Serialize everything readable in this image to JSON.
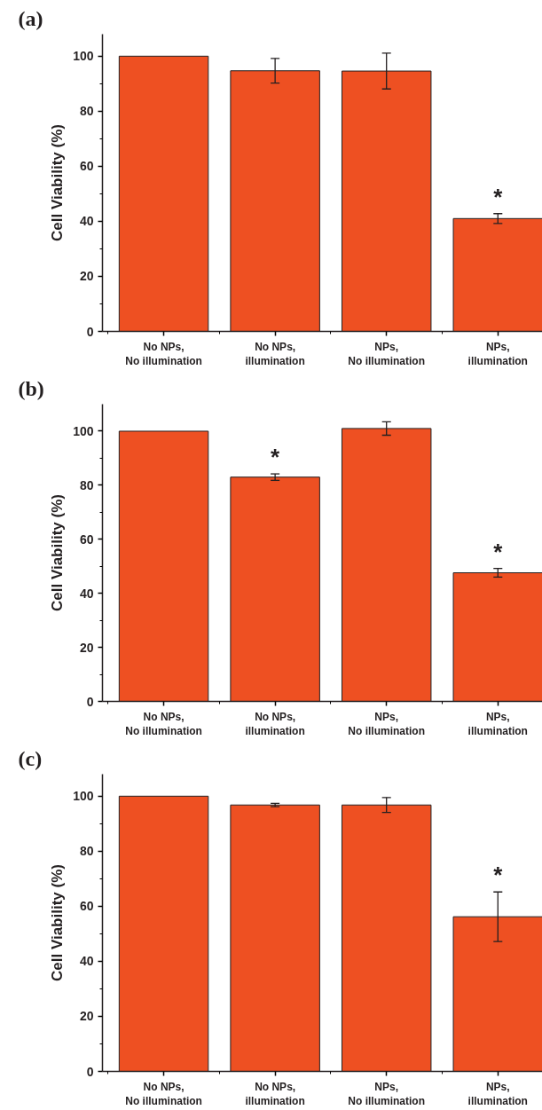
{
  "chart_data": [
    {
      "type": "bar",
      "title": "(a)",
      "ylabel": "Cell Viability (%)",
      "categories": [
        "No NPs,\nNo illumination",
        "No NPs,\nillumination",
        "NPs,\nNo illumination",
        "NPs,\nillumination"
      ],
      "values": [
        100,
        94.7,
        94.6,
        41.0
      ],
      "errors": [
        null,
        4.5,
        6.5,
        1.8
      ],
      "color": "#ee5022",
      "ylim": [
        0,
        108
      ],
      "yticks": [
        0,
        20,
        40,
        60,
        80,
        100
      ],
      "grid": false,
      "annotations": [
        {
          "text": "*",
          "x": "NPs,\nillumination",
          "y": 41.0
        }
      ]
    },
    {
      "type": "bar",
      "title": "(b)",
      "ylabel": "Cell Viability (%)",
      "categories": [
        "No NPs,\nNo illumination",
        "No NPs,\nillumination",
        "NPs,\nNo illumination",
        "NPs,\nillumination"
      ],
      "values": [
        100,
        83.0,
        101.0,
        47.6
      ],
      "errors": [
        null,
        1.2,
        2.5,
        1.6
      ],
      "color": "#ee5022",
      "ylim": [
        0,
        110
      ],
      "yticks": [
        0,
        20,
        40,
        60,
        80,
        100
      ],
      "grid": false,
      "annotations": [
        {
          "text": "*",
          "x": "No NPs,\nillumination",
          "y": 83.0
        },
        {
          "text": "*",
          "x": "NPs,\nillumination",
          "y": 47.6
        }
      ]
    },
    {
      "type": "bar",
      "title": "(c)",
      "ylabel": "Cell Viability (%)",
      "categories": [
        "No NPs,\nNo illumination",
        "No NPs,\nillumination",
        "NPs,\nNo illumination",
        "NPs,\nillumination"
      ],
      "values": [
        100,
        96.8,
        96.8,
        56.2
      ],
      "errors": [
        null,
        0.6,
        2.7,
        9.0
      ],
      "color": "#ee5022",
      "ylim": [
        0,
        108
      ],
      "yticks": [
        0,
        20,
        40,
        60,
        80,
        100
      ],
      "grid": false,
      "annotations": [
        {
          "text": "*",
          "x": "NPs,\nillumination",
          "y": 56.2
        }
      ]
    }
  ]
}
